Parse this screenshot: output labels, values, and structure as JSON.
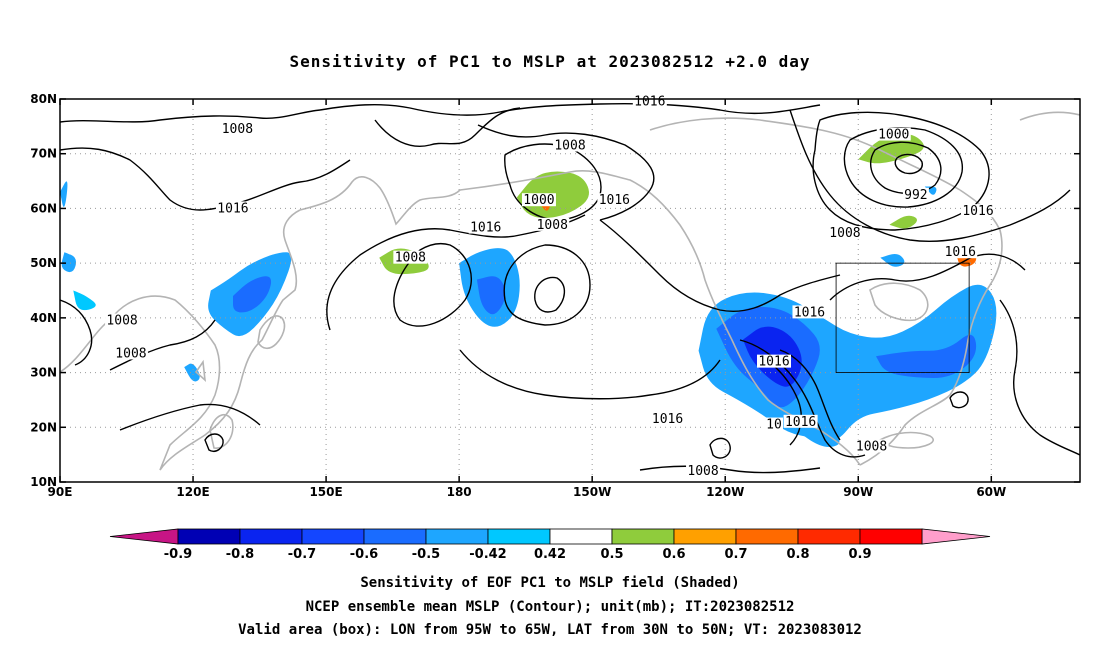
{
  "title": "Sensitivity of PC1 to MSLP at 2023082512 +2.0 day",
  "captions": [
    "Sensitivity of EOF PC1 to MSLP field (Shaded)",
    "NCEP ensemble mean MSLP (Contour); unit(mb); IT:2023082512",
    "Valid area (box): LON from 95W to 65W, LAT from 30N to 50N; VT: 2023083012"
  ],
  "map": {
    "lon_range": [
      90,
      320
    ],
    "lat_range": [
      10,
      80
    ],
    "lat_ticks": [
      {
        "value": 80,
        "label": "80N"
      },
      {
        "value": 70,
        "label": "70N"
      },
      {
        "value": 60,
        "label": "60N"
      },
      {
        "value": 50,
        "label": "50N"
      },
      {
        "value": 40,
        "label": "40N"
      },
      {
        "value": 30,
        "label": "30N"
      },
      {
        "value": 20,
        "label": "20N"
      },
      {
        "value": 10,
        "label": "10N"
      }
    ],
    "lon_ticks": [
      {
        "value": 90,
        "label": "90E"
      },
      {
        "value": 120,
        "label": "120E"
      },
      {
        "value": 150,
        "label": "150E"
      },
      {
        "value": 180,
        "label": "180"
      },
      {
        "value": 210,
        "label": "150W"
      },
      {
        "value": 240,
        "label": "120W"
      },
      {
        "value": 270,
        "label": "90W"
      },
      {
        "value": 300,
        "label": "60W"
      }
    ],
    "valid_box": {
      "lon_min": 265,
      "lon_max": 295,
      "lat_min": 30,
      "lat_max": 50
    },
    "grid": true
  },
  "colorbar": {
    "labels": [
      "-0.9",
      "-0.8",
      "-0.7",
      "-0.6",
      "-0.5",
      "-0.42",
      "0.42",
      "0.5",
      "0.6",
      "0.7",
      "0.8",
      "0.9"
    ],
    "colors": [
      "#0000b4",
      "#0a24f0",
      "#1446ff",
      "#1a6cff",
      "#1ea6ff",
      "#00c8ff",
      "#ffffff",
      "#8fcc3c",
      "#ffa000",
      "#ff6a00",
      "#ff2a00",
      "#ff0000"
    ],
    "under_color": "#c71585",
    "over_color": "#ff9ecb"
  },
  "contour_labels": [
    {
      "text": "1016",
      "lon": 223,
      "lat": 79.5
    },
    {
      "text": "1008",
      "lon": 130,
      "lat": 74.5
    },
    {
      "text": "1008",
      "lon": 205,
      "lat": 71.5
    },
    {
      "text": "1000",
      "lon": 278,
      "lat": 73.5
    },
    {
      "text": "992",
      "lon": 283,
      "lat": 62.5
    },
    {
      "text": "1016",
      "lon": 129,
      "lat": 60
    },
    {
      "text": "1000",
      "lon": 198,
      "lat": 61.5
    },
    {
      "text": "1016",
      "lon": 215,
      "lat": 61.5
    },
    {
      "text": "1008",
      "lon": 201,
      "lat": 57
    },
    {
      "text": "1016",
      "lon": 297,
      "lat": 59.5
    },
    {
      "text": "1016",
      "lon": 186,
      "lat": 56.5
    },
    {
      "text": "1008",
      "lon": 267,
      "lat": 55.5
    },
    {
      "text": "1008",
      "lon": 169,
      "lat": 51
    },
    {
      "text": "1016",
      "lon": 293,
      "lat": 52
    },
    {
      "text": "1016",
      "lon": 259,
      "lat": 41
    },
    {
      "text": "1008",
      "lon": 104,
      "lat": 39.5
    },
    {
      "text": "1008",
      "lon": 106,
      "lat": 33.5
    },
    {
      "text": "1016",
      "lon": 251,
      "lat": 32
    },
    {
      "text": "1016",
      "lon": 227,
      "lat": 21.5
    },
    {
      "text": "1016",
      "lon": 257,
      "lat": 21
    },
    {
      "text": "10",
      "lon": 251,
      "lat": 20.5
    },
    {
      "text": "1008",
      "lon": 273,
      "lat": 16.5
    },
    {
      "text": "1008",
      "lon": 235,
      "lat": 12
    }
  ],
  "shaded_regions": [
    {
      "color": "#1ea6ff",
      "pts": [
        [
          90,
          63
        ],
        [
          91,
          59
        ],
        [
          92,
          66
        ]
      ]
    },
    {
      "color": "#1ea6ff",
      "pts": [
        [
          91,
          52
        ],
        [
          94,
          51
        ],
        [
          93,
          48
        ],
        [
          90,
          49
        ]
      ]
    },
    {
      "color": "#00c8ff",
      "pts": [
        [
          93,
          45
        ],
        [
          96,
          44
        ],
        [
          99,
          42
        ],
        [
          94,
          41
        ]
      ]
    },
    {
      "color": "#1ea6ff",
      "pts": [
        [
          124,
          45
        ],
        [
          128,
          47
        ],
        [
          133,
          50
        ],
        [
          139,
          52
        ],
        [
          143,
          52
        ],
        [
          140,
          45
        ],
        [
          136,
          40
        ],
        [
          131,
          36
        ],
        [
          127,
          38
        ],
        [
          123,
          41
        ]
      ]
    },
    {
      "color": "#1a6cff",
      "pts": [
        [
          129,
          44
        ],
        [
          133,
          47
        ],
        [
          138,
          48
        ],
        [
          137,
          44
        ],
        [
          133,
          41
        ],
        [
          129,
          41
        ]
      ]
    },
    {
      "color": "#1ea6ff",
      "pts": [
        [
          118,
          31
        ],
        [
          120,
          28
        ],
        [
          122,
          29
        ],
        [
          120,
          32
        ]
      ]
    },
    {
      "color": "#8fcc3c",
      "pts": [
        [
          162,
          51
        ],
        [
          166,
          53
        ],
        [
          171,
          52
        ],
        [
          174,
          49
        ],
        [
          170,
          48
        ],
        [
          164,
          48
        ]
      ]
    },
    {
      "color": "#ffa000",
      "pts": [
        [
          166,
          52
        ],
        [
          168,
          52
        ],
        [
          167,
          51
        ]
      ]
    },
    {
      "color": "#1ea6ff",
      "pts": [
        [
          180,
          50
        ],
        [
          184,
          52
        ],
        [
          189,
          53
        ],
        [
          192,
          52
        ],
        [
          194,
          47
        ],
        [
          193,
          41
        ],
        [
          189,
          38
        ],
        [
          185,
          39
        ],
        [
          181,
          44
        ]
      ]
    },
    {
      "color": "#1a6cff",
      "pts": [
        [
          184,
          47
        ],
        [
          189,
          48
        ],
        [
          191,
          44
        ],
        [
          188,
          40
        ],
        [
          185,
          42
        ]
      ]
    },
    {
      "color": "#8fcc3c",
      "pts": [
        [
          193,
          62
        ],
        [
          197,
          66
        ],
        [
          202,
          67
        ],
        [
          208,
          66
        ],
        [
          210,
          62
        ],
        [
          205,
          59
        ],
        [
          199,
          58
        ],
        [
          195,
          59
        ]
      ]
    },
    {
      "color": "#ff6a00",
      "pts": [
        [
          198,
          61
        ],
        [
          201,
          62
        ],
        [
          200,
          59
        ]
      ]
    },
    {
      "color": "#8fcc3c",
      "pts": [
        [
          270,
          69
        ],
        [
          275,
          73
        ],
        [
          282,
          74
        ],
        [
          286,
          71
        ],
        [
          280,
          69
        ],
        [
          274,
          68
        ]
      ]
    },
    {
      "color": "#8fcc3c",
      "pts": [
        [
          277,
          57
        ],
        [
          281,
          59
        ],
        [
          284,
          58
        ],
        [
          281,
          56
        ]
      ]
    },
    {
      "color": "#1ea6ff",
      "pts": [
        [
          285,
          64
        ],
        [
          288,
          64
        ],
        [
          287,
          62
        ]
      ]
    },
    {
      "color": "#1ea6ff",
      "pts": [
        [
          275,
          51
        ],
        [
          279,
          52
        ],
        [
          281,
          50
        ],
        [
          278,
          49
        ]
      ]
    },
    {
      "color": "#ff6a00",
      "pts": [
        [
          292,
          52
        ],
        [
          296,
          53
        ],
        [
          297,
          50
        ],
        [
          293,
          49
        ]
      ]
    },
    {
      "color": "#1ea6ff",
      "pts": [
        [
          234,
          34
        ],
        [
          236,
          42
        ],
        [
          244,
          45
        ],
        [
          254,
          44
        ],
        [
          262,
          40
        ],
        [
          268,
          37
        ],
        [
          276,
          36
        ],
        [
          284,
          39
        ],
        [
          291,
          44
        ],
        [
          298,
          47
        ],
        [
          302,
          42
        ],
        [
          299,
          32
        ],
        [
          294,
          28
        ],
        [
          286,
          25
        ],
        [
          277,
          23
        ],
        [
          270,
          22
        ],
        [
          265,
          17
        ],
        [
          260,
          18
        ],
        [
          254,
          19
        ],
        [
          249,
          22
        ],
        [
          243,
          25
        ],
        [
          236,
          28
        ]
      ]
    },
    {
      "color": "#1a6cff",
      "pts": [
        [
          238,
          38
        ],
        [
          244,
          42
        ],
        [
          252,
          42
        ],
        [
          258,
          39
        ],
        [
          262,
          35
        ],
        [
          260,
          30
        ],
        [
          256,
          25
        ],
        [
          252,
          23
        ],
        [
          248,
          27
        ],
        [
          242,
          31
        ]
      ]
    },
    {
      "color": "#0a24f0",
      "pts": [
        [
          244,
          36
        ],
        [
          249,
          39
        ],
        [
          255,
          37
        ],
        [
          258,
          32
        ],
        [
          255,
          27
        ],
        [
          251,
          28
        ],
        [
          246,
          32
        ]
      ]
    },
    {
      "color": "#1a6cff",
      "pts": [
        [
          274,
          33
        ],
        [
          282,
          34
        ],
        [
          290,
          34
        ],
        [
          296,
          38
        ],
        [
          297,
          33
        ],
        [
          291,
          29
        ],
        [
          283,
          29
        ],
        [
          276,
          30
        ]
      ]
    },
    {
      "color": "#1ea6ff",
      "pts": [
        [
          255,
          20
        ],
        [
          262,
          21
        ],
        [
          267,
          17
        ],
        [
          262,
          16
        ]
      ]
    }
  ]
}
